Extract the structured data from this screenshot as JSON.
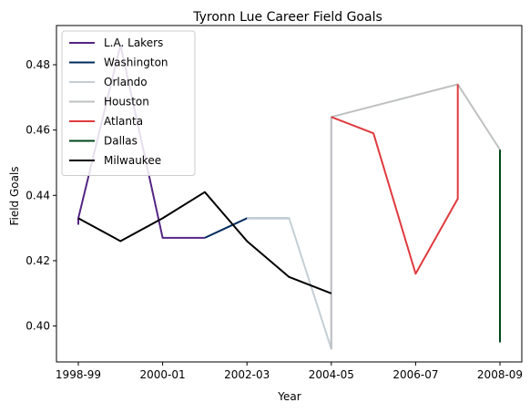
{
  "chart_data": {
    "type": "line",
    "title": "Tyronn Lue Career Field Goals",
    "xlabel": "Year",
    "ylabel": "Field Goals",
    "x_categories": [
      "1998-99",
      "1999-00",
      "2000-01",
      "2001-02",
      "2002-03",
      "2003-04",
      "2004-05",
      "2005-06",
      "2006-07",
      "2007-08",
      "2008-09"
    ],
    "x_tick_labels": [
      "1998-99",
      "2000-01",
      "2002-03",
      "2004-05",
      "2006-07",
      "2008-09"
    ],
    "ylim": [
      0.389,
      0.492
    ],
    "y_ticks": [
      0.4,
      0.42,
      0.44,
      0.46,
      0.48
    ],
    "y_tick_labels": [
      "0.40",
      "0.42",
      "0.44",
      "0.46",
      "0.48"
    ],
    "legend_position": "upper-left",
    "grid": false,
    "series": [
      {
        "name": "L.A. Lakers",
        "color": "#552583",
        "points": [
          [
            "1998-99",
            0.431
          ],
          [
            "1998-99",
            0.433
          ],
          [
            "1999-00",
            0.486
          ],
          [
            "2000-01",
            0.427
          ],
          [
            "2001-02",
            0.427
          ]
        ]
      },
      {
        "name": "Washington",
        "color": "#002B5C",
        "points": [
          [
            "2001-02",
            0.427
          ],
          [
            "2002-03",
            0.433
          ],
          [
            "2003-04",
            0.433
          ]
        ]
      },
      {
        "name": "Orlando",
        "color": "#C4CED4",
        "points": [
          [
            "2002-03",
            0.433
          ],
          [
            "2003-04",
            0.433
          ],
          [
            "2004-05",
            0.393
          ],
          [
            "2004-05",
            0.464
          ]
        ]
      },
      {
        "name": "Houston",
        "color": "#BEC0C2",
        "points": [
          [
            "2004-05",
            0.393
          ],
          [
            "2004-05",
            0.464
          ],
          [
            "2007-08",
            0.474
          ],
          [
            "2008-09",
            0.454
          ]
        ]
      },
      {
        "name": "Atlanta",
        "color": "#E03A3E",
        "points": [
          [
            "2004-05",
            0.464
          ],
          [
            "2005-06",
            0.459
          ],
          [
            "2006-07",
            0.416
          ],
          [
            "2007-08",
            0.439
          ],
          [
            "2007-08",
            0.474
          ]
        ]
      },
      {
        "name": "Dallas",
        "color": "#00471B",
        "points": [
          [
            "2008-09",
            0.454
          ],
          [
            "2008-09",
            0.395
          ]
        ]
      },
      {
        "name": "Milwaukee",
        "color": "#000000",
        "points": [
          [
            "1998-99",
            0.433
          ],
          [
            "1999-00",
            0.426
          ],
          [
            "2000-01",
            0.433
          ],
          [
            "2001-02",
            0.441
          ],
          [
            "2002-03",
            0.426
          ],
          [
            "2003-04",
            0.415
          ],
          [
            "2004-05",
            0.41
          ]
        ]
      }
    ]
  }
}
